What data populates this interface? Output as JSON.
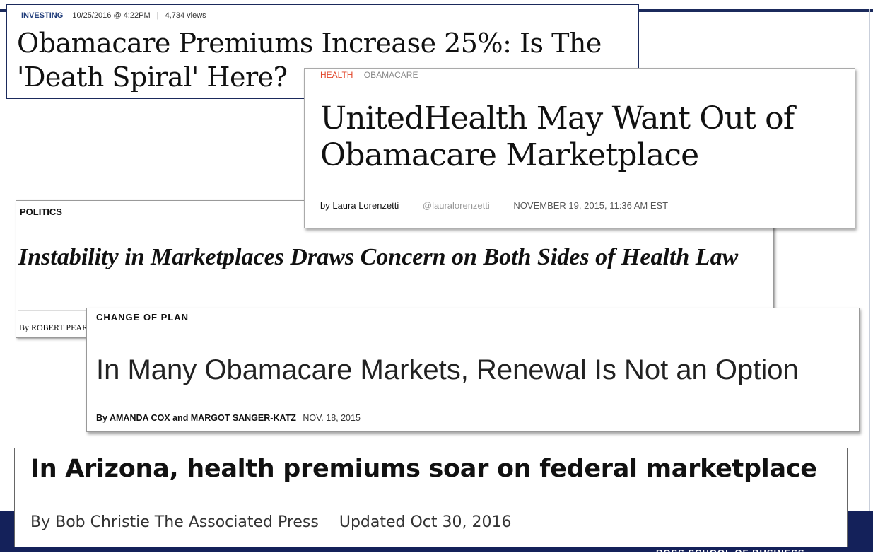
{
  "slide": {
    "footer_text": "ROSS SCHOOL OF BUSINESS"
  },
  "articles": {
    "forbes": {
      "section": "INVESTING",
      "date": "10/25/2016 @ 4:22PM",
      "separator": "|",
      "views": "4,734 views",
      "headline": "Obamacare Premiums Increase 25%: Is The 'Death Spiral' Here?"
    },
    "fortune": {
      "tag_primary": "HEALTH",
      "tag_secondary": "OBAMACARE",
      "headline": "UnitedHealth May Want Out of Obamacare Marketplace",
      "author": "by Laura Lorenzetti",
      "handle": "@lauralorenzetti",
      "date": "NOVEMBER 19, 2015, 11:36 AM EST"
    },
    "nyt_politics": {
      "section": "POLITICS",
      "headline": "Instability in Marketplaces Draws Concern on Both Sides of Health Law",
      "byline": "By ROBERT PEAR"
    },
    "nyt_upshot": {
      "section": "CHANGE OF PLAN",
      "headline": "In Many Obamacare Markets, Renewal Is Not an Option",
      "authors": "By AMANDA COX and MARGOT SANGER-KATZ",
      "date": "NOV. 18, 2015"
    },
    "ap": {
      "headline": "In Arizona, health premiums soar on federal marketplace",
      "author": "By Bob Christie The Associated Press",
      "date": "Updated Oct 30, 2016"
    }
  },
  "colors": {
    "navy": "#14215a",
    "fortune_health_tag": "#e2472b",
    "forbes_section": "#1f3c7a"
  }
}
